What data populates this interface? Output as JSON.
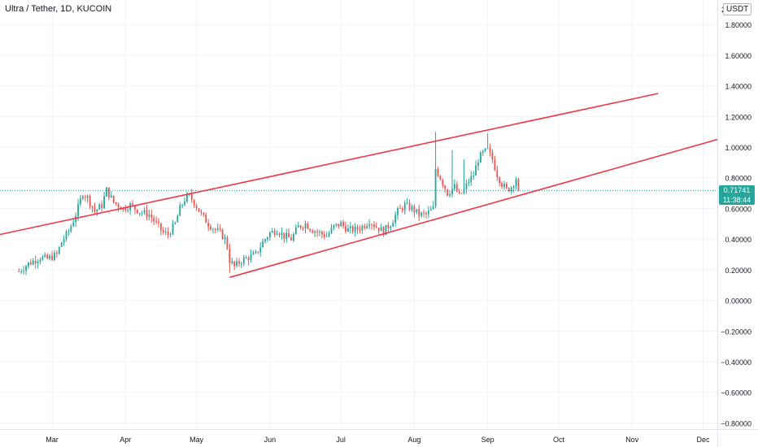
{
  "header": {
    "title": "Ultra / Tether, 1D, KUCOIN",
    "unit": "USDT"
  },
  "last_price": {
    "value": "0.71741",
    "countdown": "11:38:44"
  },
  "colors": {
    "up": "#26a69a",
    "down": "#ef5350",
    "trendline": "#f23645",
    "grid": "#f0f3fa",
    "price_line": "#26a69a"
  },
  "chart_data": {
    "type": "candlestick",
    "title": "Ultra / Tether, 1D, KUCOIN",
    "ylim": [
      -0.84,
      1.96
    ],
    "y_ticks": [
      "1.80000",
      "1.60000",
      "1.40000",
      "1.20000",
      "1.00000",
      "0.80000",
      "0.60000",
      "0.40000",
      "0.20000",
      "0.00000",
      "−0.20000",
      "−0.40000",
      "−0.60000",
      "−0.80000"
    ],
    "y_tick_values": [
      1.8,
      1.6,
      1.4,
      1.2,
      1.0,
      0.8,
      0.6,
      0.4,
      0.2,
      0.0,
      -0.2,
      -0.4,
      -0.6,
      -0.8
    ],
    "top_partial_label": "2",
    "x_ticks": [
      "Mar",
      "Apr",
      "May",
      "Jun",
      "Jul",
      "Aug",
      "Sep",
      "Oct",
      "Nov",
      "Dec"
    ],
    "x_tick_days": [
      14,
      45,
      75,
      106,
      136,
      167,
      198,
      228,
      259,
      289
    ],
    "x_range_days": [
      -8,
      295
    ],
    "grid": true,
    "close_anchors": [
      [
        0,
        0.19
      ],
      [
        4,
        0.24
      ],
      [
        9,
        0.28
      ],
      [
        12,
        0.27
      ],
      [
        16,
        0.3
      ],
      [
        18,
        0.38
      ],
      [
        21,
        0.45
      ],
      [
        24,
        0.56
      ],
      [
        27,
        0.7
      ],
      [
        29,
        0.67
      ],
      [
        32,
        0.58
      ],
      [
        35,
        0.62
      ],
      [
        37,
        0.72
      ],
      [
        40,
        0.64
      ],
      [
        44,
        0.6
      ],
      [
        47,
        0.62
      ],
      [
        51,
        0.58
      ],
      [
        55,
        0.56
      ],
      [
        58,
        0.5
      ],
      [
        61,
        0.44
      ],
      [
        63,
        0.43
      ],
      [
        66,
        0.5
      ],
      [
        68,
        0.6
      ],
      [
        70,
        0.66
      ],
      [
        72,
        0.68
      ],
      [
        74,
        0.64
      ],
      [
        77,
        0.56
      ],
      [
        80,
        0.5
      ],
      [
        83,
        0.46
      ],
      [
        85,
        0.44
      ],
      [
        87,
        0.4
      ],
      [
        88,
        0.35
      ],
      [
        89,
        0.26
      ],
      [
        91,
        0.22
      ],
      [
        94,
        0.26
      ],
      [
        97,
        0.28
      ],
      [
        100,
        0.3
      ],
      [
        103,
        0.38
      ],
      [
        106,
        0.44
      ],
      [
        109,
        0.46
      ],
      [
        112,
        0.42
      ],
      [
        115,
        0.4
      ],
      [
        118,
        0.48
      ],
      [
        121,
        0.5
      ],
      [
        124,
        0.46
      ],
      [
        127,
        0.44
      ],
      [
        130,
        0.42
      ],
      [
        133,
        0.48
      ],
      [
        136,
        0.5
      ],
      [
        139,
        0.46
      ],
      [
        142,
        0.46
      ],
      [
        145,
        0.48
      ],
      [
        148,
        0.52
      ],
      [
        151,
        0.48
      ],
      [
        154,
        0.45
      ],
      [
        157,
        0.5
      ],
      [
        160,
        0.58
      ],
      [
        163,
        0.62
      ],
      [
        166,
        0.6
      ],
      [
        169,
        0.56
      ],
      [
        172,
        0.56
      ],
      [
        175,
        0.6
      ],
      [
        176,
        0.86
      ],
      [
        178,
        0.8
      ],
      [
        181,
        0.7
      ],
      [
        184,
        0.74
      ],
      [
        186,
        0.68
      ],
      [
        188,
        0.72
      ],
      [
        190,
        0.78
      ],
      [
        192,
        0.82
      ],
      [
        194,
        0.92
      ],
      [
        196,
        0.96
      ],
      [
        198,
        0.98
      ],
      [
        200,
        0.92
      ],
      [
        202,
        0.82
      ],
      [
        204,
        0.76
      ],
      [
        206,
        0.72
      ],
      [
        208,
        0.74
      ],
      [
        210,
        0.8
      ],
      [
        211,
        0.72
      ]
    ],
    "wick_spikes": [
      {
        "day": 176,
        "high": 1.1
      },
      {
        "day": 183,
        "high": 0.98
      },
      {
        "day": 188,
        "high": 0.92
      },
      {
        "day": 198,
        "high": 1.09
      },
      {
        "day": 89,
        "low": 0.18
      }
    ],
    "trendlines": [
      {
        "name": "upper",
        "points": [
          [
            -8,
            0.43
          ],
          [
            270,
            1.35
          ]
        ]
      },
      {
        "name": "lower",
        "points": [
          [
            89,
            0.15
          ],
          [
            295,
            1.05
          ]
        ]
      }
    ],
    "last_price": 0.71741
  }
}
